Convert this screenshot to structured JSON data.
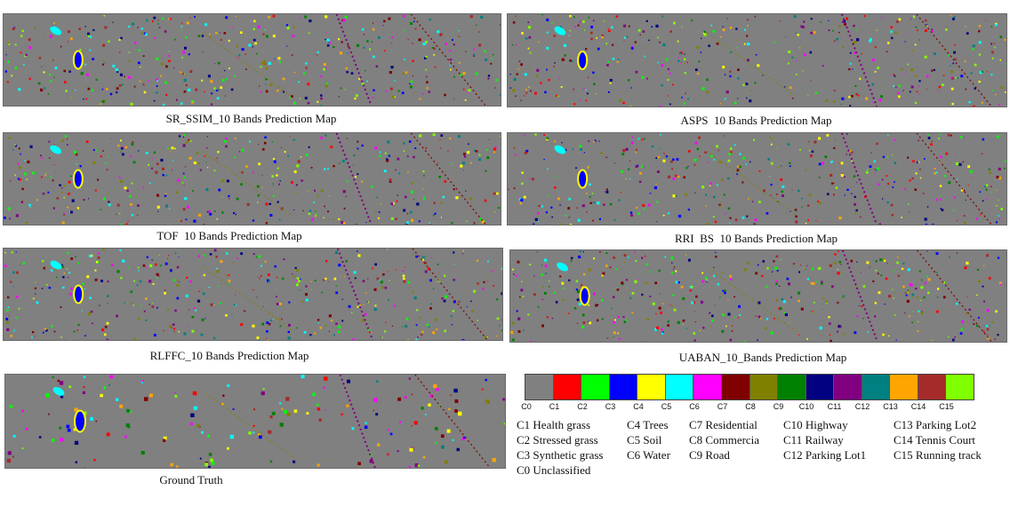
{
  "panels": [
    {
      "id": "sr-ssim",
      "caption": "SR_SSIM_10 Bands Prediction Map"
    },
    {
      "id": "asps",
      "caption": "ASPS  10 Bands Prediction Map"
    },
    {
      "id": "tof",
      "caption": "TOF  10 Bands Prediction Map"
    },
    {
      "id": "rri-bs",
      "caption": "RRI  BS  10 Bands Prediction Map"
    },
    {
      "id": "rlffc",
      "caption": "RLFFC_10 Bands Prediction Map"
    },
    {
      "id": "uaban",
      "caption": "UABAN_10_Bands Prediction Map"
    },
    {
      "id": "ground-truth",
      "caption": "Ground Truth"
    }
  ],
  "map_background": "#808080",
  "legend": {
    "ticks": [
      "C0",
      "C1",
      "C2",
      "C3",
      "C4",
      "C5",
      "C6",
      "C7",
      "C8",
      "C9",
      "C10",
      "C11",
      "C12",
      "C13",
      "C14",
      "C15"
    ],
    "colors": [
      "#808080",
      "#ff0000",
      "#00ff00",
      "#0000ff",
      "#ffff00",
      "#00ffff",
      "#ff00ff",
      "#800000",
      "#808000",
      "#008000",
      "#000080",
      "#800080",
      "#008080",
      "#ffa500",
      "#a52a2a",
      "#80ff00"
    ],
    "columns": [
      [
        "C1 Health grass",
        "C2 Stressed grass",
        "C3 Synthetic grass",
        "C0 Unclassified"
      ],
      [
        "C4 Trees",
        "C5 Soil",
        "C6 Water"
      ],
      [
        "C7 Residential",
        "C8 Commercia",
        "C9 Road"
      ],
      [
        "C10 Highway",
        "C11 Railway",
        "C12 Parking Lot1"
      ],
      [
        "C13 Parking Lot2",
        "C14 Tennis Court",
        "C15 Running track"
      ]
    ]
  }
}
